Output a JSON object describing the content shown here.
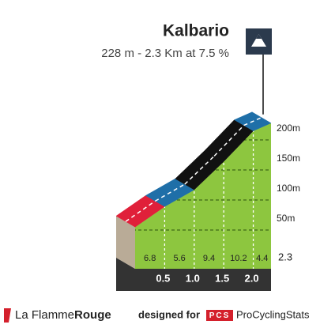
{
  "chart_data": {
    "type": "climb-profile",
    "title": "Kalbario",
    "subtitle": "228 m - 2.3 Km at 7.5 %",
    "x": [
      0,
      0.5,
      1,
      1.5,
      2,
      2.3
    ],
    "elevation": [
      55,
      89,
      117,
      164,
      215,
      228
    ],
    "gradients": [
      6.8,
      5.6,
      9.4,
      10.2,
      4.4
    ],
    "colors": [
      "#e0203a",
      "#1f6fa8",
      "#111111",
      "#111111",
      "#1f6fa8"
    ],
    "xlim": [
      0,
      2.3
    ],
    "xticks": [
      0.5,
      {
        "value": 1,
        "label": "1.0"
      },
      1.5,
      {
        "value": 2,
        "label": "2.0"
      }
    ],
    "ylim": [
      0,
      250
    ],
    "yticks": [
      {
        "value": 50,
        "label": "50m"
      },
      {
        "value": 100,
        "label": "100m"
      },
      {
        "value": 150,
        "label": "150m"
      },
      {
        "value": 200,
        "label": "200m"
      }
    ]
  },
  "footer": {
    "brand_a": "La Flamme",
    "brand_b": "Rouge",
    "designed": "designed for",
    "badge": "PCS",
    "site": "ProCyclingStats"
  }
}
